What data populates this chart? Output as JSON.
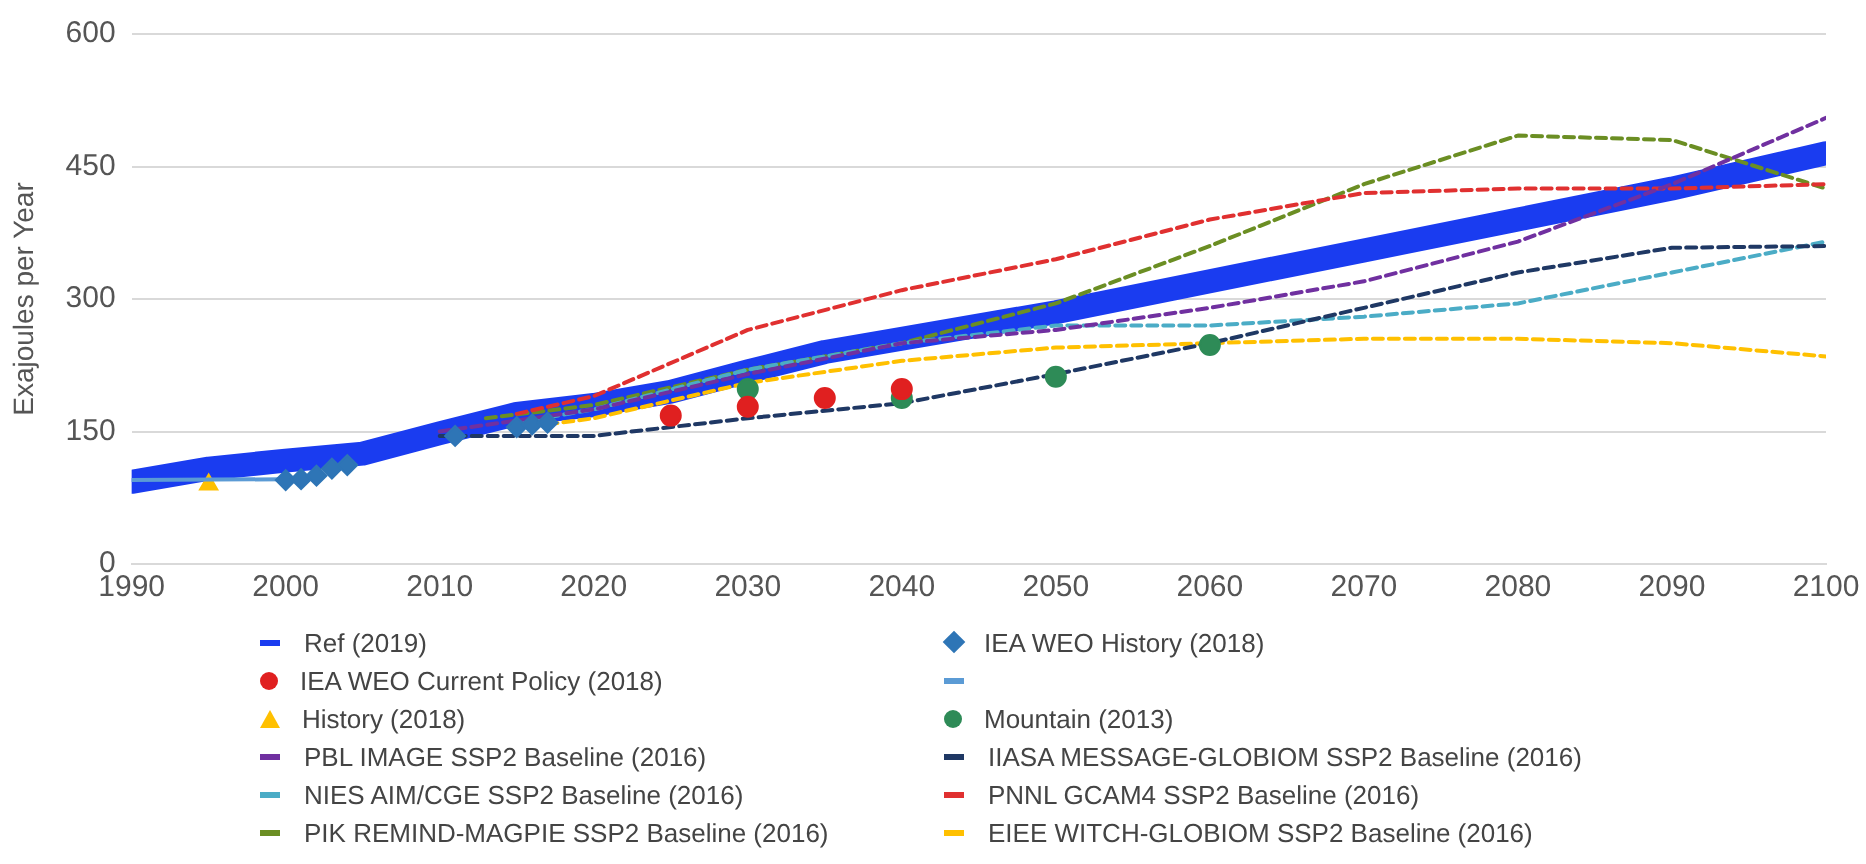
{
  "chart_data": {
    "type": "line",
    "ylabel": "Exajoules per Year",
    "xlim": [
      1990,
      2100
    ],
    "xticks": [
      1990,
      2000,
      2010,
      2020,
      2030,
      2040,
      2050,
      2060,
      2070,
      2080,
      2090,
      2100
    ],
    "ylim": [
      0,
      600
    ],
    "yticks": [
      0,
      150,
      300,
      450,
      600
    ],
    "grid": "y",
    "legend": "bottom",
    "series": [
      {
        "name": "Ref (2019)",
        "color": "#1a3cf0",
        "marker": "none",
        "line_style": "solid",
        "x": [
          1990,
          1995,
          2000,
          2005,
          2010,
          2015,
          2020,
          2025,
          2030,
          2035,
          2040,
          2050,
          2060,
          2070,
          2080,
          2090,
          2100
        ],
        "values": [
          93,
          108,
          117,
          125,
          148,
          170,
          180,
          195,
          218,
          240,
          255,
          285,
          320,
          355,
          390,
          425,
          465
        ]
      },
      {
        "name": "IEA WEO History (2018)",
        "type": "scatter",
        "color": "#2e75b6",
        "marker": "diamond",
        "x": [
          2000,
          2001,
          2002,
          2003,
          2004,
          2011,
          2015,
          2016,
          2017
        ],
        "values": [
          95,
          96,
          100,
          108,
          112,
          145,
          155,
          158,
          160
        ]
      },
      {
        "name": "IEA WEO Current Policy (2018)",
        "type": "scatter",
        "color": "#e02020",
        "marker": "circle",
        "x": [
          2025,
          2030,
          2035,
          2040
        ],
        "values": [
          168,
          178,
          188,
          198
        ]
      },
      {
        "name": null,
        "color": "#5b9bd5",
        "marker": "none",
        "line_style": "solid",
        "x": [
          1990,
          2000
        ],
        "values": [
          95,
          96
        ]
      },
      {
        "name": "History (2018)",
        "type": "scatter",
        "color": "#ffc000",
        "marker": "triangle",
        "x": [
          1995
        ],
        "values": [
          90
        ]
      },
      {
        "name": "Mountain (2013)",
        "type": "scatter",
        "color": "#2e8b57",
        "marker": "circle",
        "x": [
          2030,
          2040,
          2050,
          2060
        ],
        "values": [
          198,
          188,
          212,
          248
        ]
      },
      {
        "name": "PBL IMAGE SSP2 Baseline (2016)",
        "color": "#7030a0",
        "marker": "none",
        "line_style": "dashed",
        "x": [
          2010,
          2020,
          2030,
          2040,
          2050,
          2060,
          2070,
          2080,
          2090,
          2100
        ],
        "values": [
          150,
          175,
          215,
          250,
          265,
          290,
          320,
          365,
          430,
          505
        ]
      },
      {
        "name": "IIASA MESSAGE-GLOBIOM SSP2 Baseline (2016)",
        "color": "#1f3864",
        "marker": "none",
        "line_style": "dashed",
        "x": [
          2010,
          2020,
          2030,
          2040,
          2050,
          2060,
          2070,
          2080,
          2090,
          2100
        ],
        "values": [
          145,
          145,
          165,
          182,
          215,
          250,
          290,
          330,
          358,
          360
        ]
      },
      {
        "name": "NIES AIM/CGE SSP2 Baseline (2016)",
        "color": "#4bacc6",
        "marker": "none",
        "line_style": "dashed",
        "x": [
          2015,
          2020,
          2030,
          2040,
          2050,
          2060,
          2070,
          2080,
          2090,
          2100
        ],
        "values": [
          160,
          175,
          220,
          250,
          270,
          270,
          280,
          295,
          330,
          365
        ]
      },
      {
        "name": "PNNL GCAM4 SSP2 Baseline (2016)",
        "color": "#e03030",
        "marker": "none",
        "line_style": "dashed",
        "x": [
          2015,
          2020,
          2030,
          2040,
          2050,
          2060,
          2070,
          2080,
          2090,
          2100
        ],
        "values": [
          170,
          190,
          265,
          310,
          345,
          390,
          420,
          425,
          425,
          430
        ]
      },
      {
        "name": "PIK REMIND-MAGPIE SSP2 Baseline (2016)",
        "color": "#6b8e23",
        "marker": "none",
        "line_style": "dashed",
        "x": [
          2013,
          2020,
          2030,
          2040,
          2050,
          2060,
          2070,
          2080,
          2090,
          2100
        ],
        "values": [
          165,
          180,
          220,
          250,
          295,
          360,
          430,
          485,
          480,
          425
        ]
      },
      {
        "name": "EIEE WITCH-GLOBIOM SSP2 Baseline (2016)",
        "color": "#ffc000",
        "marker": "none",
        "line_style": "dashed",
        "x": [
          2017,
          2020,
          2030,
          2040,
          2050,
          2060,
          2070,
          2080,
          2090,
          2100
        ],
        "values": [
          158,
          165,
          205,
          230,
          245,
          250,
          255,
          255,
          250,
          235
        ]
      }
    ]
  }
}
